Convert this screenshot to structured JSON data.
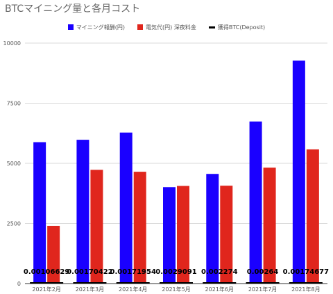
{
  "chart_data": {
    "type": "bar",
    "title": "BTCマイニング量と各月コスト",
    "categories": [
      "2021年2月",
      "2021年3月",
      "2021年4月",
      "2021年5月",
      "2021年6月",
      "2021年7月",
      "2021年8月"
    ],
    "series": [
      {
        "name": "マイニング報酬(円)",
        "color": "#1a00ff",
        "values": [
          5880,
          5980,
          6280,
          4010,
          4560,
          6740,
          9270
        ]
      },
      {
        "name": "電気代(円)  深夜料金",
        "color": "#e0261d",
        "values": [
          2400,
          4730,
          4650,
          4060,
          4070,
          4820,
          5580
        ]
      },
      {
        "name": "獲得BTC(Deposit)",
        "type": "line",
        "color": "#000000",
        "values": [
          0.00106629,
          0.00170422,
          0.00171954,
          0.0029091,
          0.002274,
          0.00264,
          0.00174677
        ],
        "labels": [
          "0.00106629",
          "0.00170422",
          "0.00171954",
          "0.0029091",
          "0.002274",
          "0.00264",
          "0.00174677"
        ]
      }
    ],
    "yticks": [
      "0",
      "2500",
      "5000",
      "7500",
      "10000"
    ],
    "ylim": [
      0,
      10000
    ],
    "grid": true,
    "legend": "top"
  }
}
